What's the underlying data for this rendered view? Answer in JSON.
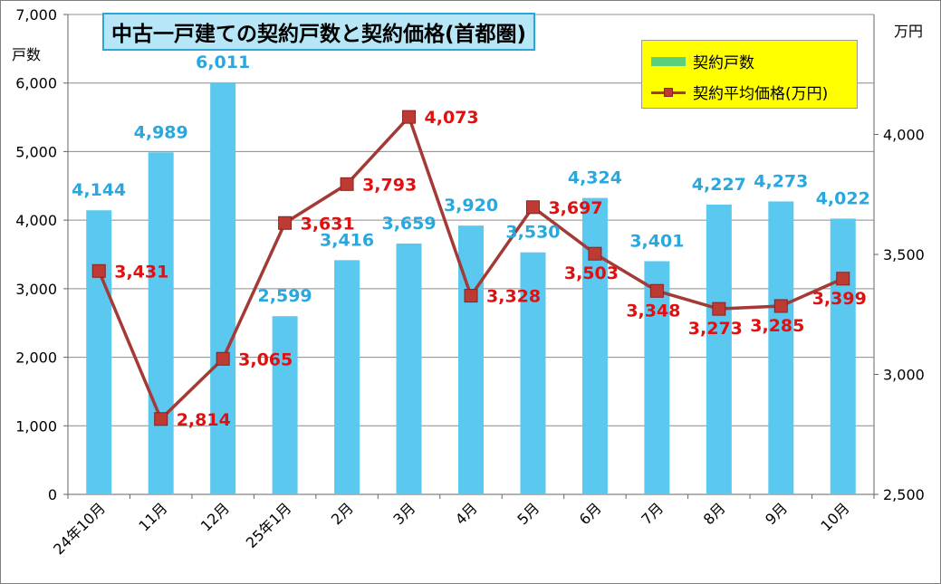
{
  "chart_data": {
    "type": "bar",
    "title": "中古一戸建ての契約戸数と契約価格(首都圏)",
    "categories": [
      "24年10月",
      "11月",
      "12月",
      "25年1月",
      "2月",
      "3月",
      "4月",
      "5月",
      "6月",
      "7月",
      "8月",
      "9月",
      "10月"
    ],
    "series": [
      {
        "name": "契約戸数",
        "kind": "bar",
        "axis": "left",
        "color": "#5bc8f0",
        "label_color": "#29a8e0",
        "values": [
          4144,
          4989,
          6011,
          2599,
          3416,
          3659,
          3920,
          3530,
          4324,
          3401,
          4227,
          4273,
          4022
        ],
        "labels": [
          "4,144",
          "4,989",
          "6,011",
          "2,599",
          "3,416",
          "3,659",
          "3,920",
          "3,530",
          "4,324",
          "3,401",
          "4,227",
          "4,273",
          "4,022"
        ]
      },
      {
        "name": "契約平均価格(万円)",
        "kind": "line",
        "axis": "right",
        "color": "#a33a35",
        "marker_color": "#be3b34",
        "label_color": "#e01010",
        "values": [
          3431,
          2814,
          3065,
          3631,
          3793,
          4073,
          3328,
          3697,
          3503,
          3348,
          3273,
          3285,
          3399
        ],
        "labels": [
          "3,431",
          "2,814",
          "3,065",
          "3,631",
          "3,793",
          "4,073",
          "3,328",
          "3,697",
          "3,503",
          "3,348",
          "3,273",
          "3,285",
          "3,399"
        ]
      }
    ],
    "y_left": {
      "unit_label": "戸数",
      "min": 0,
      "max": 7000,
      "ticks": [
        "0",
        "1,000",
        "2,000",
        "3,000",
        "4,000",
        "5,000",
        "6,000",
        "7,000"
      ]
    },
    "y_right": {
      "unit_label": "万円",
      "min": 2500,
      "max": 4500,
      "ticks": [
        "2,500",
        "3,000",
        "3,500",
        "4,000"
      ]
    },
    "grid": true,
    "legend_position": "top-right"
  }
}
